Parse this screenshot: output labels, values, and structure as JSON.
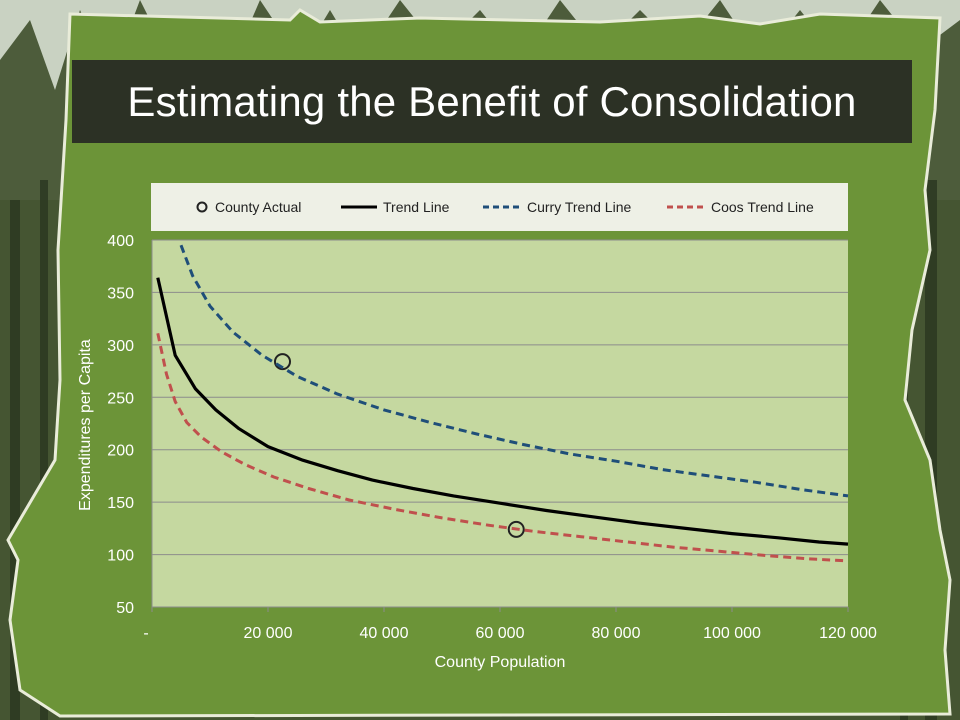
{
  "slide": {
    "title": "Estimating the Benefit of Consolidation",
    "background_color": "#6c9438",
    "title_bar_color": "#2c3125"
  },
  "chart_data": {
    "type": "line",
    "xlabel": "County Population",
    "ylabel": "Expenditures per Capita",
    "xlim": [
      0,
      120000
    ],
    "ylim": [
      50,
      400
    ],
    "x_ticks": [
      0,
      20000,
      40000,
      60000,
      80000,
      100000,
      120000
    ],
    "x_tick_labels": [
      "-",
      "20 000",
      "40 000",
      "60 000",
      "80 000",
      "100 000",
      "120 000"
    ],
    "y_ticks": [
      50,
      100,
      150,
      200,
      250,
      300,
      350,
      400
    ],
    "y_tick_labels": [
      "50",
      "100",
      "150",
      "200",
      "250",
      "300",
      "350",
      "400"
    ],
    "grid": true,
    "legend_position": "top",
    "legend": [
      "County Actual",
      "Trend Line",
      "Curry Trend Line",
      "Coos Trend Line"
    ],
    "series": [
      {
        "name": "County Actual",
        "style": "marker-circle",
        "color": "#222222",
        "x": [
          22500,
          62800
        ],
        "y": [
          284,
          124
        ]
      },
      {
        "name": "Trend Line",
        "style": "solid",
        "color": "#000000",
        "x": [
          1000,
          4000,
          7500,
          11000,
          15000,
          20000,
          26000,
          32000,
          38000,
          45000,
          52000,
          60000,
          68000,
          76000,
          84000,
          92000,
          100000,
          108000,
          115000,
          120000
        ],
        "y": [
          364,
          290,
          258,
          238,
          220,
          203,
          190,
          180,
          171,
          163,
          156,
          149,
          142,
          136,
          130,
          125,
          120,
          116,
          112,
          110
        ]
      },
      {
        "name": "Curry Trend Line",
        "style": "dashed",
        "color": "#1f4e79",
        "x": [
          5000,
          7000,
          10000,
          14000,
          19000,
          25000,
          32000,
          40000,
          48000,
          56000,
          64000,
          72000,
          80000,
          88000,
          96000,
          104000,
          112000,
          120000
        ],
        "y": [
          395,
          366,
          337,
          312,
          290,
          270,
          253,
          238,
          226,
          215,
          205,
          196,
          189,
          181,
          175,
          169,
          162,
          156
        ]
      },
      {
        "name": "Coos Trend Line",
        "style": "dashed",
        "color": "#c0504d",
        "x": [
          1000,
          2500,
          4000,
          6000,
          8500,
          12000,
          16000,
          21000,
          27000,
          34000,
          42000,
          50000,
          58000,
          66000,
          74000,
          82000,
          90000,
          98000,
          106000,
          113000,
          120000
        ],
        "y": [
          311,
          272,
          246,
          226,
          212,
          198,
          186,
          174,
          163,
          152,
          143,
          135,
          128,
          122,
          117,
          112,
          107,
          103,
          99,
          96,
          94
        ]
      }
    ]
  }
}
